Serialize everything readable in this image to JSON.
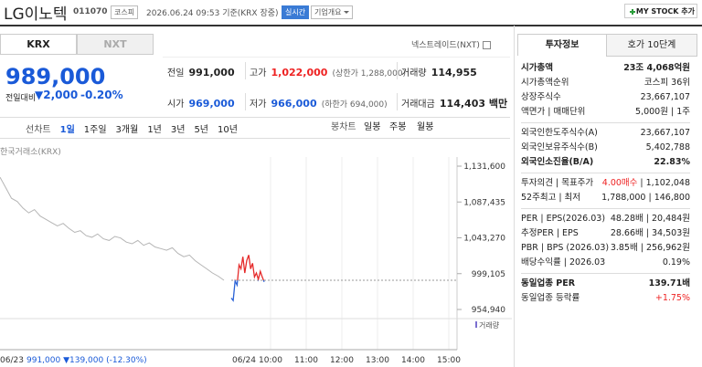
{
  "header": {
    "name": "LG이노텍",
    "code": "011070",
    "market": "코스피",
    "timestamp": "2026.06.24 09:53 기준(KRX 장중)",
    "realtime": "실시간",
    "company_info": "기업개요",
    "mystock": "MY STOCK 추가"
  },
  "tabs": [
    "KRX",
    "NXT"
  ],
  "nxt_link": "넥스트레이드(NXT)",
  "price": {
    "current": "989,000",
    "change_label": "전일대비",
    "change": "▼2,000",
    "rate": "-0.20%"
  },
  "quote": [
    [
      {
        "label": "전일",
        "value": "991,000"
      },
      {
        "label": "고가",
        "value": "1,022,000",
        "note": "(상한가 1,288,000)"
      },
      {
        "label": "거래량",
        "value": "114,955"
      }
    ],
    [
      {
        "label": "시가",
        "value": "969,000"
      },
      {
        "label": "저가",
        "value": "966,000",
        "note": "(하한가 694,000)"
      },
      {
        "label": "거래대금",
        "value": "114,403 백만"
      }
    ]
  ],
  "periods": [
    "선차트",
    "1일",
    "1주일",
    "3개월",
    "1년",
    "3년",
    "5년",
    "10년"
  ],
  "candles": [
    "봉차트",
    "일봉",
    "주봉",
    "월봉"
  ],
  "chart_data": {
    "type": "line",
    "source": "한국거래소(KRX)",
    "ylim": [
      954940,
      1131600
    ],
    "yticks": [
      {
        "value": 1131600,
        "label": "1,131,600"
      },
      {
        "value": 1087435,
        "label": "1,087,435"
      },
      {
        "value": 1043270,
        "label": "1,043,270"
      },
      {
        "value": 999105,
        "label": "999,105"
      },
      {
        "value": 954940,
        "label": "954,940"
      }
    ],
    "xticks": [
      "10:00",
      "11:00",
      "12:00",
      "13:00",
      "14:00",
      "15:00"
    ],
    "reference": 991000,
    "series": [
      {
        "name": "06/23",
        "color": "#b5b5b5",
        "values": [
          1118000,
          1105000,
          1092000,
          1088000,
          1080000,
          1074000,
          1078000,
          1070000,
          1066000,
          1062000,
          1058000,
          1061000,
          1055000,
          1050000,
          1052000,
          1046000,
          1044000,
          1048000,
          1042000,
          1040000,
          1045000,
          1043000,
          1038000,
          1036000,
          1040000,
          1034000,
          1037000,
          1032000,
          1030000,
          1028000,
          1031000,
          1024000,
          1020000,
          1022000,
          1015000,
          1010000,
          1005000,
          1000000,
          996000,
          991000
        ]
      },
      {
        "name": "06/24",
        "color": "#e52a2a",
        "color_down": "#2a62d6",
        "values": [
          969000,
          966000,
          990000,
          985000,
          1010000,
          1005000,
          1020000,
          1000000,
          1015000,
          1022000,
          1005000,
          1012000,
          995000,
          1000000,
          992000,
          1002000,
          995000,
          989000
        ]
      }
    ],
    "summary": "991,000 ▼139,000 (-12.30%)",
    "volume_label": "거래량"
  },
  "investment": {
    "tabs": [
      "투자정보",
      "호가 10단계"
    ],
    "groups": [
      [
        {
          "label": "시가총액",
          "value": "23조 4,068억원"
        },
        {
          "label": "시가총액순위",
          "value": "코스피 36위"
        },
        {
          "label": "상장주식수",
          "value": "23,667,107"
        },
        {
          "label": "액면가 | 매매단위",
          "value": "5,000원 | 1주"
        }
      ],
      [
        {
          "label": "외국인한도주식수(A)",
          "value": "23,667,107"
        },
        {
          "label": "외국인보유주식수(B)",
          "value": "5,402,788"
        },
        {
          "label": "외국인소진율(B/A)",
          "value": "22.83%"
        }
      ],
      [
        {
          "label": "투자의견 | 목표주가",
          "value": "4.00매수",
          "value2": "| 1,102,048"
        },
        {
          "label": "52주최고 | 최저",
          "value": "1,788,000 | 146,800"
        }
      ],
      [
        {
          "label": "PER | EPS(2026.03)",
          "value": "48.28배 | 20,484원"
        },
        {
          "label": "추정PER | EPS",
          "value": "28.66배 | 34,503원"
        },
        {
          "label": "PBR | BPS (2026.03)",
          "value": "3.85배 | 256,962원"
        },
        {
          "label": "배당수익률 | 2026.03",
          "value": "0.19%"
        }
      ],
      [
        {
          "label": "동일업종 PER",
          "value": "139.71배"
        },
        {
          "label": "동일업종 등락률",
          "value": "+1.75%"
        }
      ]
    ]
  }
}
